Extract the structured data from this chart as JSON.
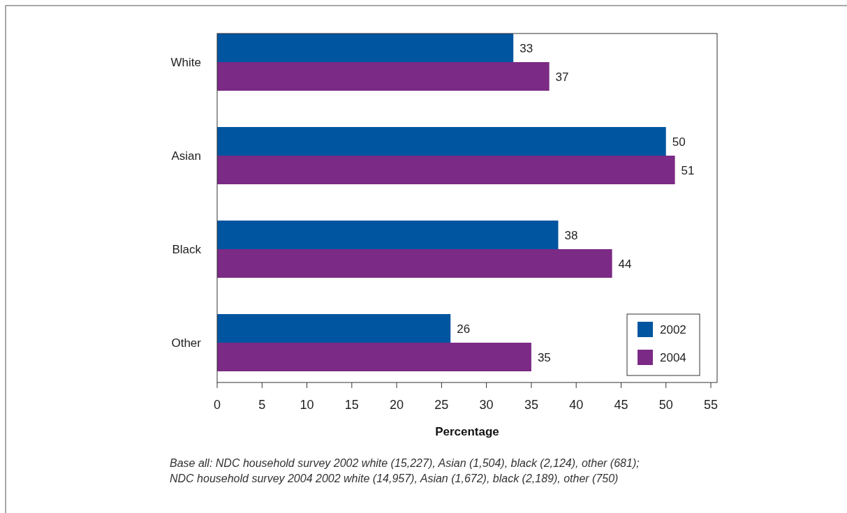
{
  "chart_data": {
    "type": "bar",
    "orientation": "horizontal",
    "xlabel": "Percentage",
    "categories": [
      "White",
      "Asian",
      "Black",
      "Other"
    ],
    "series": [
      {
        "name": "2002",
        "color": "#0055a0",
        "values": [
          33,
          50,
          38,
          26
        ]
      },
      {
        "name": "2004",
        "color": "#7b2a85",
        "values": [
          37,
          51,
          44,
          35
        ]
      }
    ],
    "xlim": [
      0,
      55.7
    ],
    "xticks": [
      0,
      5,
      10,
      15,
      20,
      25,
      30,
      35,
      40,
      45,
      50,
      55
    ],
    "data_labels": true,
    "grid": false,
    "legend": "bottom right",
    "annotations": [
      "Base all: NDC household survey 2002 white (15,227), Asian (1,504), black (2,124), other (681);",
      "NDC household survey 2004 2002 white (14,957), Asian (1,672), black (2,189), other (750)"
    ]
  }
}
